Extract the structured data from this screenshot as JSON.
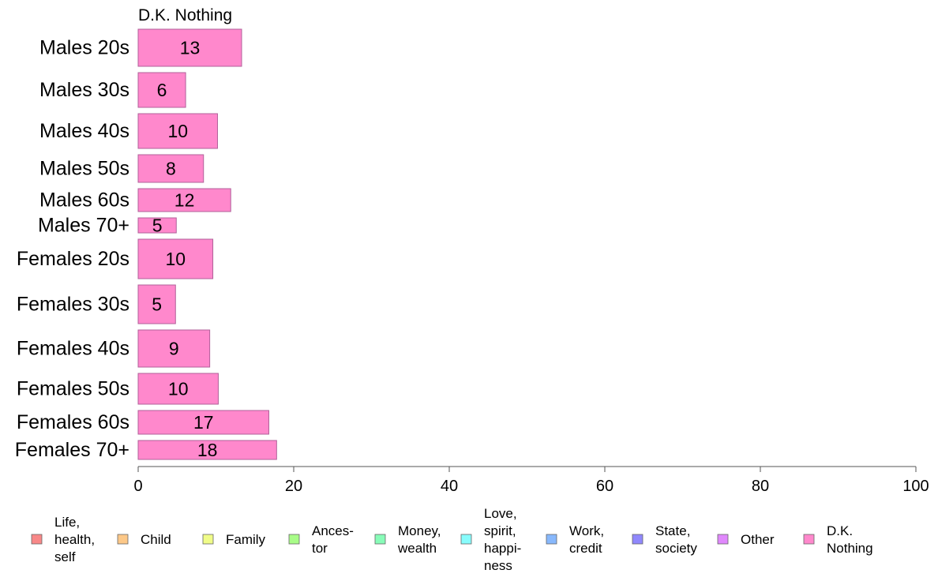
{
  "chart_data": {
    "type": "bar",
    "orientation": "horizontal",
    "title": "D.K. Nothing",
    "xlabel": "",
    "ylabel": "",
    "xlim": [
      0,
      100
    ],
    "xticks": [
      0,
      20,
      40,
      60,
      80,
      100
    ],
    "grid": false,
    "bar_color": "#ff88cc",
    "bar_stroke": "#b0609a",
    "categories": [
      "Males 20s",
      "Males 30s",
      "Males 40s",
      "Males 50s",
      "Males 60s",
      "Males 70+",
      "Females 20s",
      "Females 30s",
      "Females 40s",
      "Females 50s",
      "Females 60s",
      "Females 70+"
    ],
    "values": [
      13.3,
      6.1,
      10.2,
      8.4,
      11.9,
      4.9,
      9.6,
      4.8,
      9.2,
      10.3,
      16.8,
      17.8
    ],
    "value_labels": [
      "13",
      "6",
      "10",
      "8",
      "12",
      "5",
      "10",
      "5",
      "9",
      "10",
      "17",
      "18"
    ],
    "legend": {
      "placement": "bottom",
      "entries": [
        {
          "label": [
            "Life,",
            "health,",
            "self"
          ],
          "color": "#f88888"
        },
        {
          "label": [
            "Child"
          ],
          "color": "#fcc888"
        },
        {
          "label": [
            "Family"
          ],
          "color": "#f0fc88"
        },
        {
          "label": [
            "Ances-",
            "tor"
          ],
          "color": "#a8fc88"
        },
        {
          "label": [
            "Money,",
            "wealth"
          ],
          "color": "#88fcb8"
        },
        {
          "label": [
            "Love,",
            "spirit,",
            "happi-",
            "ness"
          ],
          "color": "#88fcfc"
        },
        {
          "label": [
            "Work,",
            "credit"
          ],
          "color": "#88b8fc"
        },
        {
          "label": [
            "State,",
            "society"
          ],
          "color": "#9088fc"
        },
        {
          "label": [
            "Other"
          ],
          "color": "#e088fc"
        },
        {
          "label": [
            "D.K.",
            "Nothing"
          ],
          "color": "#ff88cc"
        }
      ]
    }
  }
}
